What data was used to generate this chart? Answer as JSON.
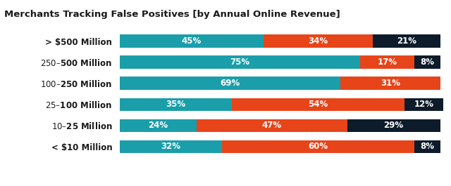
{
  "title": "Merchants Tracking False Positives [by Annual Online Revenue]",
  "categories": [
    "< $10 Million",
    "$10 – $25 Million",
    "$25 – $100 Million",
    "$100 – $250 Million",
    "$250 – $500 Million",
    "> $500 Million"
  ],
  "yes": [
    32,
    24,
    35,
    69,
    75,
    45
  ],
  "no": [
    60,
    47,
    54,
    31,
    17,
    34
  ],
  "dont_know": [
    8,
    29,
    12,
    0,
    8,
    21
  ],
  "colors": {
    "yes": "#1a9eaa",
    "no": "#e8441a",
    "dont_know": "#0d1b2a"
  },
  "background_title": "#f0f0f0",
  "background_chart": "#ffffff",
  "text_color": "#ffffff",
  "title_color": "#1a1a1a",
  "title_fontsize": 9.5,
  "bar_fontsize": 8.5,
  "legend_fontsize": 8.5,
  "ylabel_fontsize": 8.5,
  "figsize": [
    6.4,
    2.65
  ],
  "dpi": 100
}
